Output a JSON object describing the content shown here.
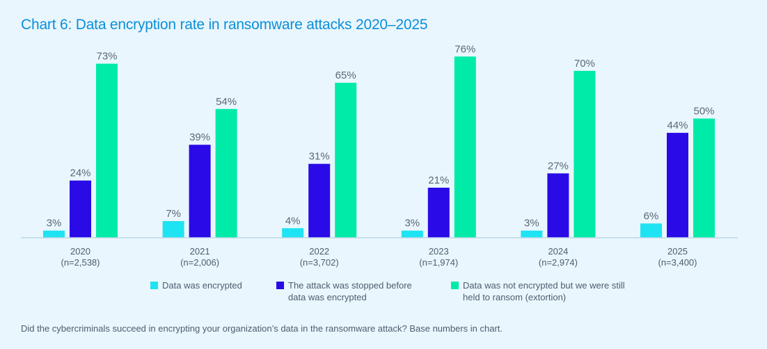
{
  "title": "Chart 6: Data encryption rate in ransomware attacks 2020–2025",
  "footnote": "Did the cybercriminals succeed in encrypting your organization’s data in the ransomware attack?  Base numbers in chart.",
  "chart_data": {
    "type": "bar",
    "title": "Chart 6: Data encryption rate in ransomware attacks 2020–2025",
    "xlabel": "",
    "ylabel": "",
    "ylim": [
      0,
      80
    ],
    "grid": false,
    "legend_position": "bottom",
    "value_suffix": "%",
    "categories": [
      {
        "year": "2020",
        "base": "(n=2,538)"
      },
      {
        "year": "2021",
        "base": "(n=2,006)"
      },
      {
        "year": "2022",
        "base": "(n=3,702)"
      },
      {
        "year": "2023",
        "base": "(n=1,974)"
      },
      {
        "year": "2024",
        "base": "(n=2,974)"
      },
      {
        "year": "2025",
        "base": "(n=3,400)"
      }
    ],
    "series": [
      {
        "name": "Data was encrypted",
        "color": "#1ee3f2",
        "values": [
          3,
          7,
          4,
          3,
          3,
          6
        ]
      },
      {
        "name": "The attack was stopped before data was encrypted",
        "color": "#2a0ae6",
        "values": [
          24,
          39,
          31,
          21,
          27,
          44
        ]
      },
      {
        "name": "Data was not encrypted but we were still held to ransom (extortion)",
        "color": "#00eba8",
        "values": [
          73,
          54,
          65,
          76,
          70,
          50
        ]
      }
    ]
  }
}
